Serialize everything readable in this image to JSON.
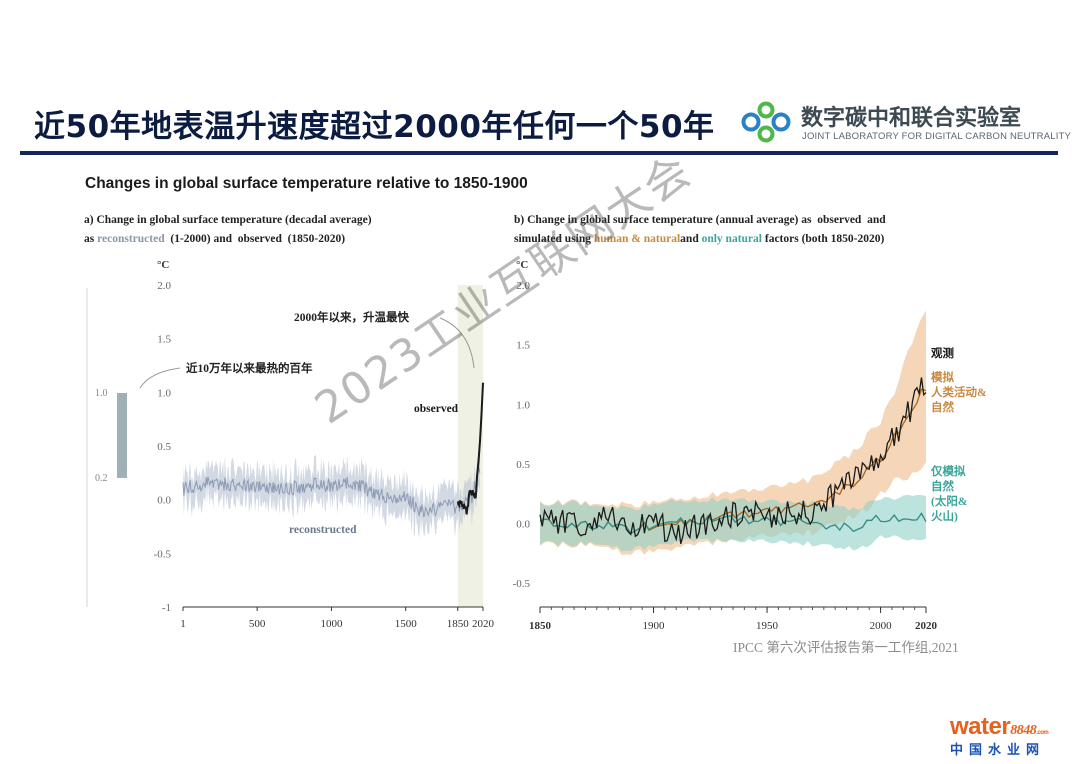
{
  "header": {
    "title": "近50年地表温升速度超过2000年任何一个50年",
    "logo_zh": "数字碳中和联合实验室",
    "logo_en": "JOINT LABORATORY FOR DIGITAL CARBON NEUTRALITY",
    "colors": {
      "title": "#0c1b40",
      "rule": "#13275c",
      "logo_green": "#4fb848",
      "logo_blue": "#2a82c4"
    }
  },
  "figure_title": "Changes in global surface temperature relative to 1850-1900",
  "panel_a": {
    "title_line1": "a) Change in global surface temperature (decadal average)",
    "title_line2_pre": "as ",
    "title_line2_hl": "reconstructed",
    "title_line2_post": "  (1-2000) and  observed  (1850-2020)"
  },
  "panel_b": {
    "title_line1": "b) Change in global surface temperature (annual average) as  observed  and",
    "title_line2_pre": "simulated using ",
    "title_line2_hl1": "human & natural",
    "title_line2_mid": "and ",
    "title_line2_hl2": "only natural",
    "title_line2_post": " factors (both 1850-2020)"
  },
  "watermark": "2023工业互联网大会",
  "source": "IPCC 第六次评估报告第一工作组,2021",
  "brand": {
    "prefix": "water",
    "digits": "8848",
    "suffix": ".com",
    "zh": "中国水业网"
  },
  "chart_data": [
    {
      "type": "line",
      "xlabel": "",
      "ylabel": "°C",
      "xlim": [
        1,
        2020
      ],
      "ylim": [
        -1,
        2
      ],
      "x_ticks": [
        1,
        500,
        1000,
        1500,
        1850,
        2020
      ],
      "y_ticks": [
        -1,
        -0.5,
        0.0,
        0.5,
        1.0,
        1.5,
        2.0
      ],
      "shaded_period": [
        1850,
        2020
      ],
      "series": [
        {
          "name": "reconstructed",
          "color": "#8d9cb4",
          "x": [
            1,
            100,
            200,
            300,
            400,
            500,
            600,
            700,
            800,
            900,
            1000,
            1100,
            1200,
            1300,
            1400,
            1500,
            1600,
            1700,
            1800,
            1850,
            1900,
            1950,
            2000
          ],
          "y": [
            0.1,
            0.14,
            0.16,
            0.14,
            0.12,
            0.13,
            0.12,
            0.1,
            0.12,
            0.14,
            0.13,
            0.15,
            0.12,
            0.06,
            0.0,
            0.03,
            -0.1,
            -0.08,
            -0.05,
            -0.08,
            -0.04,
            0.04,
            0.3
          ],
          "band_halfwidth": 0.15
        },
        {
          "name": "observed",
          "color": "#1a1a1a",
          "x": [
            1850,
            1870,
            1890,
            1910,
            1930,
            1950,
            1970,
            1990,
            2000,
            2010,
            2020
          ],
          "y": [
            -0.03,
            0.0,
            -0.06,
            -0.1,
            0.05,
            0.08,
            0.05,
            0.36,
            0.55,
            0.8,
            1.09
          ]
        }
      ],
      "annotations": [
        {
          "text": "2000年以来，升温最快"
        },
        {
          "text": "近10万年以来最热的百年"
        },
        {
          "text": "observed"
        },
        {
          "text": "reconstructed"
        }
      ],
      "inset": {
        "top": "1.0",
        "bottom": "0.2"
      }
    },
    {
      "type": "line",
      "xlabel": "",
      "ylabel": "°C",
      "xlim": [
        1850,
        2020
      ],
      "ylim": [
        -0.7,
        2
      ],
      "x_ticks": [
        1850,
        1900,
        1950,
        2000,
        2020
      ],
      "y_ticks": [
        -0.5,
        0.0,
        0.5,
        1.0,
        1.5,
        2.0
      ],
      "series": [
        {
          "name": "观测",
          "color": "#1a1a1a",
          "x": [
            1850,
            1860,
            1870,
            1880,
            1890,
            1900,
            1910,
            1920,
            1930,
            1940,
            1950,
            1960,
            1970,
            1980,
            1990,
            2000,
            2010,
            2020
          ],
          "y": [
            0.0,
            0.02,
            0.0,
            0.05,
            -0.06,
            0.02,
            -0.1,
            -0.02,
            0.02,
            0.12,
            0.05,
            0.1,
            0.08,
            0.25,
            0.4,
            0.55,
            0.85,
            1.2
          ]
        },
        {
          "name": "模拟 人类活动&自然",
          "color": "#c9893e",
          "x": [
            1850,
            1870,
            1890,
            1910,
            1930,
            1950,
            1970,
            1990,
            2000,
            2010,
            2020
          ],
          "y": [
            0.0,
            0.0,
            -0.05,
            0.0,
            0.05,
            0.1,
            0.15,
            0.35,
            0.55,
            0.85,
            1.15
          ],
          "band_halfwidth": [
            0.18,
            0.18,
            0.2,
            0.2,
            0.2,
            0.2,
            0.22,
            0.28,
            0.32,
            0.45,
            0.6
          ]
        },
        {
          "name": "仅模拟 自然(太阳&火山)",
          "color": "#3aa69a",
          "x": [
            1850,
            1870,
            1890,
            1910,
            1930,
            1950,
            1970,
            1990,
            2000,
            2010,
            2020
          ],
          "y": [
            0.0,
            0.0,
            -0.05,
            0.02,
            0.03,
            0.02,
            0.0,
            -0.05,
            0.05,
            0.05,
            0.05
          ],
          "band_halfwidth": 0.17
        }
      ],
      "legend_labels": [
        {
          "text": "观测"
        },
        {
          "text": "模拟"
        },
        {
          "text": "人类活动&"
        },
        {
          "text": "自然"
        },
        {
          "text": "仅模拟"
        },
        {
          "text": "自然"
        },
        {
          "text": "(太阳&"
        },
        {
          "text": "火山)"
        }
      ]
    }
  ]
}
